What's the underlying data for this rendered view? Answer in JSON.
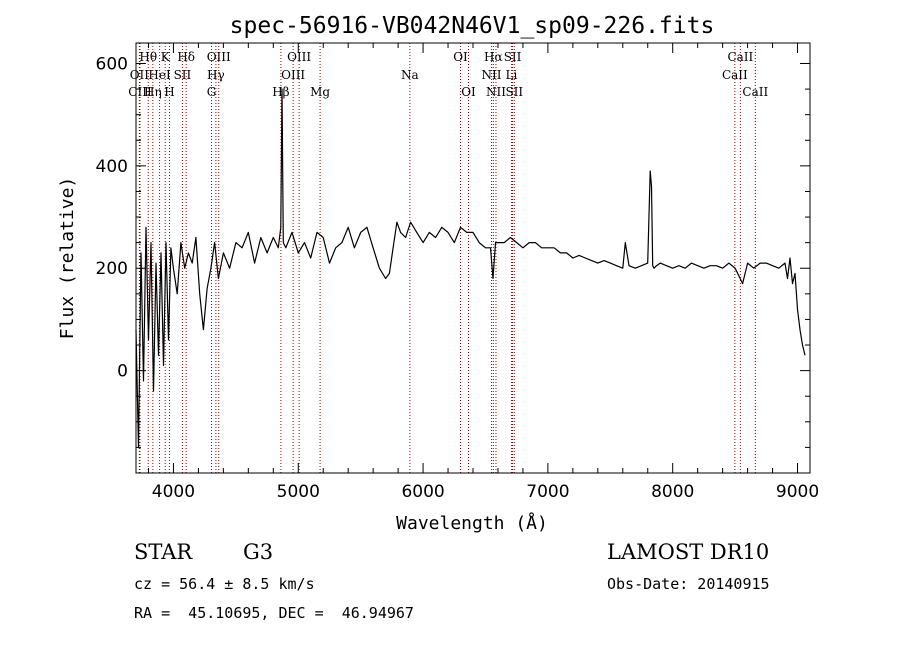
{
  "chart_data": {
    "type": "line",
    "title": "spec-56916-VB042N46V1_sp09-226.fits",
    "xlabel": "Wavelength (Å)",
    "ylabel": "Flux (relative)",
    "xlim": [
      3700,
      9100
    ],
    "ylim": [
      -200,
      640
    ],
    "xticks": [
      4000,
      5000,
      6000,
      7000,
      8000,
      9000
    ],
    "yticks": [
      0,
      200,
      400,
      600
    ],
    "line_color": "#000000",
    "marker_color": "#990000",
    "lines": [
      {
        "label": "OII",
        "x": 3727,
        "row": 1
      },
      {
        "label": "CIII",
        "x": 3732,
        "row": 2
      },
      {
        "label": "Hθ",
        "x": 3798,
        "row": 0
      },
      {
        "label": "Hη",
        "x": 3835,
        "row": 2
      },
      {
        "label": "HeI",
        "x": 3889,
        "row": 1
      },
      {
        "label": "K",
        "x": 3934,
        "row": 0
      },
      {
        "label": "H",
        "x": 3968,
        "row": 2
      },
      {
        "label": "SII",
        "x": 4072,
        "row": 1
      },
      {
        "label": "Hδ",
        "x": 4102,
        "row": 0
      },
      {
        "label": "Hγ",
        "x": 4340,
        "row": 1
      },
      {
        "label": "G",
        "x": 4305,
        "row": 2
      },
      {
        "label": "OIII",
        "x": 4363,
        "row": 0
      },
      {
        "label": "Hβ",
        "x": 4861,
        "row": 2
      },
      {
        "label": "OIII",
        "x": 4959,
        "row": 1
      },
      {
        "label": "OIII",
        "x": 5007,
        "row": 0
      },
      {
        "label": "Mg",
        "x": 5175,
        "row": 2
      },
      {
        "label": "Na",
        "x": 5894,
        "row": 1
      },
      {
        "label": "OI",
        "x": 6300,
        "row": 0
      },
      {
        "label": "OI",
        "x": 6364,
        "row": 2
      },
      {
        "label": "NII",
        "x": 6548,
        "row": 1
      },
      {
        "label": "Hα",
        "x": 6563,
        "row": 0
      },
      {
        "label": "NII",
        "x": 6584,
        "row": 2
      },
      {
        "label": "Li",
        "x": 6708,
        "row": 1
      },
      {
        "label": "SII",
        "x": 6717,
        "row": 0
      },
      {
        "label": "SII",
        "x": 6731,
        "row": 2
      },
      {
        "label": "CaII",
        "x": 8498,
        "row": 1
      },
      {
        "label": "CaII",
        "x": 8542,
        "row": 0
      },
      {
        "label": "CaII",
        "x": 8662,
        "row": 2
      }
    ],
    "series": [
      {
        "x": [
          3700,
          3720,
          3740,
          3760,
          3780,
          3800,
          3820,
          3840,
          3860,
          3880,
          3900,
          3920,
          3940,
          3960,
          3980,
          4000,
          4030,
          4060,
          4090,
          4120,
          4150,
          4180,
          4210,
          4240,
          4270,
          4300,
          4330,
          4360,
          4400,
          4450,
          4500,
          4550,
          4600,
          4650,
          4700,
          4750,
          4800,
          4840,
          4860,
          4870,
          4880,
          4900,
          4950,
          5000,
          5050,
          5100,
          5150,
          5200,
          5250,
          5300,
          5350,
          5400,
          5450,
          5500,
          5550,
          5600,
          5650,
          5700,
          5730,
          5760,
          5790,
          5820,
          5860,
          5900,
          5950,
          6000,
          6050,
          6100,
          6150,
          6200,
          6250,
          6300,
          6350,
          6400,
          6450,
          6500,
          6540,
          6560,
          6580,
          6600,
          6650,
          6700,
          6750,
          6800,
          6850,
          6900,
          6950,
          7000,
          7050,
          7100,
          7150,
          7200,
          7250,
          7300,
          7350,
          7400,
          7450,
          7500,
          7550,
          7600,
          7620,
          7650,
          7700,
          7750,
          7800,
          7820,
          7830,
          7840,
          7850,
          7870,
          7900,
          7950,
          8000,
          8050,
          8100,
          8150,
          8200,
          8250,
          8300,
          8350,
          8400,
          8450,
          8500,
          8530,
          8560,
          8600,
          8650,
          8700,
          8750,
          8800,
          8850,
          8900,
          8920,
          8940,
          8960,
          8980,
          9000,
          9020,
          9040,
          9060
        ],
        "y": [
          80,
          -150,
          230,
          -20,
          280,
          60,
          250,
          -40,
          210,
          30,
          230,
          10,
          250,
          60,
          240,
          200,
          150,
          250,
          200,
          230,
          210,
          260,
          150,
          80,
          160,
          200,
          250,
          180,
          230,
          200,
          250,
          240,
          270,
          210,
          260,
          230,
          260,
          240,
          280,
          550,
          250,
          240,
          270,
          230,
          250,
          220,
          270,
          260,
          210,
          240,
          250,
          280,
          240,
          270,
          280,
          240,
          200,
          180,
          190,
          240,
          290,
          270,
          260,
          290,
          270,
          250,
          270,
          260,
          280,
          270,
          250,
          280,
          270,
          270,
          250,
          240,
          240,
          180,
          250,
          250,
          250,
          260,
          250,
          240,
          250,
          250,
          240,
          240,
          240,
          230,
          230,
          220,
          225,
          220,
          215,
          210,
          215,
          210,
          205,
          200,
          250,
          205,
          200,
          205,
          210,
          390,
          360,
          205,
          200,
          205,
          210,
          205,
          200,
          205,
          200,
          210,
          205,
          200,
          205,
          205,
          200,
          210,
          200,
          185,
          170,
          210,
          200,
          210,
          210,
          205,
          200,
          210,
          180,
          220,
          170,
          190,
          120,
          80,
          50,
          30
        ]
      }
    ],
    "grid": false
  },
  "info": {
    "class_label": "STAR",
    "subclass": "G3",
    "survey": "LAMOST DR10",
    "redshift": "cz = 56.4 ± 8.5 km/s",
    "obs_date": "Obs-Date: 20140915",
    "coords": "RA =  45.10695, DEC =  46.94967"
  }
}
